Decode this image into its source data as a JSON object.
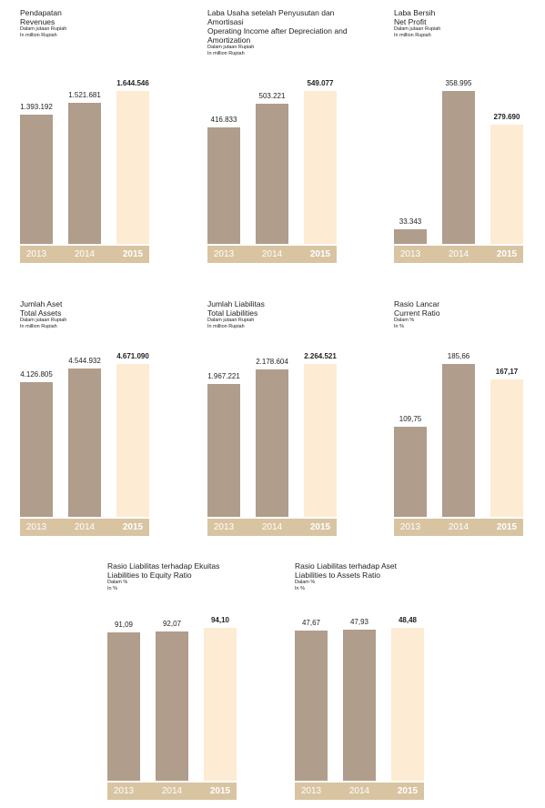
{
  "chart_data": [
    {
      "type": "bar",
      "title": "Pendapatan",
      "subtitle": "Revenues",
      "units": [
        "Dalam jutaan Rupiah",
        "In million Rupiah"
      ],
      "categories": [
        "2013",
        "2014",
        "2015"
      ],
      "values": [
        1393192,
        1521681,
        1644546
      ],
      "value_labels": [
        "1.393.192",
        "1.521.681",
        "1.644.546"
      ],
      "colors": [
        "#b09d8c",
        "#b09d8c",
        "#fdebd3"
      ],
      "band_color": "#d9c4a2"
    },
    {
      "type": "bar",
      "title": "Laba Usaha setelah Penyusutan dan Amortisasi",
      "subtitle": "Operating Income after Depreciation and Amortization",
      "units": [
        "Dalam jutaan Rupiah",
        "In million Rupiah"
      ],
      "categories": [
        "2013",
        "2014",
        "2015"
      ],
      "values": [
        416833,
        503221,
        549077
      ],
      "value_labels": [
        "416.833",
        "503.221",
        "549.077"
      ],
      "colors": [
        "#b09d8c",
        "#b09d8c",
        "#fdebd3"
      ],
      "band_color": "#d9c4a2"
    },
    {
      "type": "bar",
      "title": "Laba Bersih",
      "subtitle": "Net Profit",
      "units": [
        "Dalam jutaan Rupiah",
        "In million Rupiah"
      ],
      "categories": [
        "2013",
        "2014",
        "2015"
      ],
      "values": [
        33343,
        358995,
        279690
      ],
      "value_labels": [
        "33.343",
        "358.995",
        "279.690"
      ],
      "colors": [
        "#b09d8c",
        "#b09d8c",
        "#fdebd3"
      ],
      "band_color": "#d9c4a2"
    },
    {
      "type": "bar",
      "title": "Jumlah Aset",
      "subtitle": "Total Assets",
      "units": [
        "Dalam jutaan Rupiah",
        "In million Rupiah"
      ],
      "categories": [
        "2013",
        "2014",
        "2015"
      ],
      "values": [
        4126805,
        4544932,
        4671090
      ],
      "value_labels": [
        "4.126.805",
        "4.544.932",
        "4.671.090"
      ],
      "colors": [
        "#b09d8c",
        "#b09d8c",
        "#fdebd3"
      ],
      "band_color": "#d9c4a2"
    },
    {
      "type": "bar",
      "title": "Jumlah Liabilitas",
      "subtitle": "Total Liabilities",
      "units": [
        "Dalam jutaan Rupiah",
        "In million Rupiah"
      ],
      "categories": [
        "2013",
        "2014",
        "2015"
      ],
      "values": [
        1967221,
        2178604,
        2264521
      ],
      "value_labels": [
        "1.967.221",
        "2.178.604",
        "2.264.521"
      ],
      "colors": [
        "#b09d8c",
        "#b09d8c",
        "#fdebd3"
      ],
      "band_color": "#d9c4a2"
    },
    {
      "type": "bar",
      "title": "Rasio Lancar",
      "subtitle": "Current Ratio",
      "units": [
        "Dalam %",
        "In %"
      ],
      "categories": [
        "2013",
        "2014",
        "2015"
      ],
      "values": [
        109.75,
        185.66,
        167.17
      ],
      "value_labels": [
        "109,75",
        "185,66",
        "167,17"
      ],
      "colors": [
        "#b09d8c",
        "#b09d8c",
        "#fdebd3"
      ],
      "band_color": "#d9c4a2"
    },
    {
      "type": "bar",
      "title": "Rasio Liabilitas terhadap Ekuitas",
      "subtitle": "Liabilities to Equity Ratio",
      "units": [
        "Dalam %",
        "In %"
      ],
      "categories": [
        "2013",
        "2014",
        "2015"
      ],
      "values": [
        91.09,
        92.07,
        94.1
      ],
      "value_labels": [
        "91,09",
        "92,07",
        "94,10"
      ],
      "colors": [
        "#b09d8c",
        "#b09d8c",
        "#fdebd3"
      ],
      "band_color": "#d9c4a2"
    },
    {
      "type": "bar",
      "title": "Rasio Liabilitas terhadap Aset",
      "subtitle": "Liabilities to Assets Ratio",
      "units": [
        "Dalam %",
        "In %"
      ],
      "categories": [
        "2013",
        "2014",
        "2015"
      ],
      "values": [
        47.67,
        47.93,
        48.48
      ],
      "value_labels": [
        "47,67",
        "47,93",
        "48,48"
      ],
      "colors": [
        "#b09d8c",
        "#b09d8c",
        "#fdebd3"
      ],
      "band_color": "#d9c4a2"
    }
  ]
}
